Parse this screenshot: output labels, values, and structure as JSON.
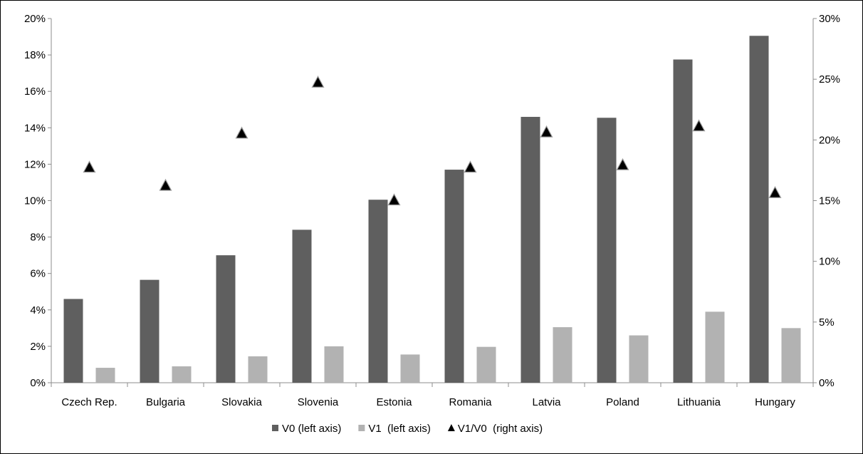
{
  "chart_data": {
    "type": "bar",
    "categories": [
      "Czech Rep.",
      "Bulgaria",
      "Slovakia",
      "Slovenia",
      "Estonia",
      "Romania",
      "Latvia",
      "Poland",
      "Lithuania",
      "Hungary"
    ],
    "series": [
      {
        "name": "V0 (left axis)",
        "axis": "left",
        "kind": "bar",
        "color": "#5f5f5f",
        "values": [
          4.6,
          5.65,
          7.0,
          8.4,
          10.05,
          11.7,
          14.6,
          14.55,
          17.75,
          19.05
        ]
      },
      {
        "name": "V1  (left axis)",
        "axis": "left",
        "kind": "bar",
        "color": "#b2b2b2",
        "values": [
          0.82,
          0.9,
          1.45,
          2.0,
          1.55,
          1.97,
          3.05,
          2.6,
          3.9,
          3.0
        ]
      },
      {
        "name": "V1/V0  (right axis)",
        "axis": "right",
        "kind": "scatter",
        "marker": "triangle",
        "color": "#000000",
        "values": [
          17.7,
          16.2,
          20.5,
          24.7,
          15.0,
          17.7,
          20.6,
          17.9,
          21.1,
          15.6
        ]
      }
    ],
    "y_left": {
      "min": 0,
      "max": 20,
      "step": 2,
      "unit": "%",
      "ticks": [
        "0%",
        "2%",
        "4%",
        "6%",
        "8%",
        "10%",
        "12%",
        "14%",
        "16%",
        "18%",
        "20%"
      ]
    },
    "y_right": {
      "min": 0,
      "max": 30,
      "step": 5,
      "unit": "%",
      "ticks": [
        "0%",
        "5%",
        "10%",
        "15%",
        "20%",
        "25%",
        "30%"
      ]
    },
    "title": "",
    "xlabel": "",
    "grid": false,
    "legend_position": "bottom"
  }
}
